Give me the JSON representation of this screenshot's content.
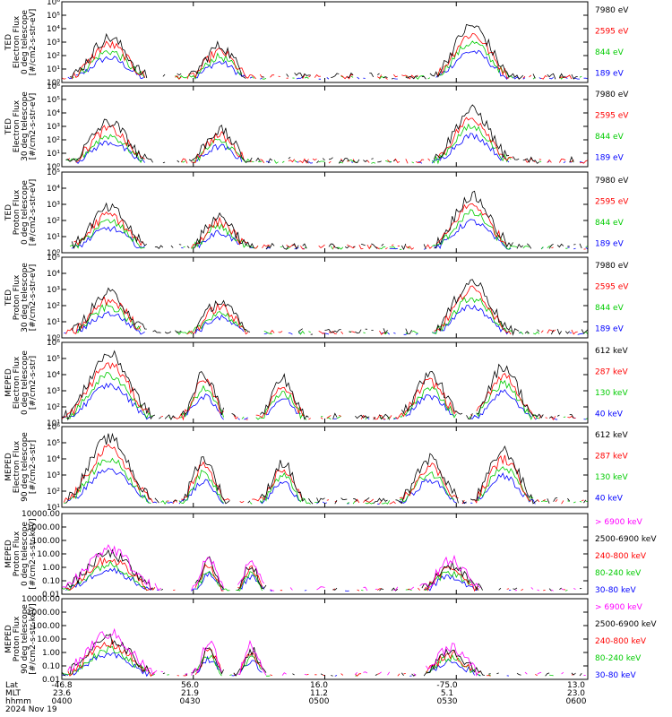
{
  "colors": {
    "blue": "#0000ff",
    "red": "#ff0000",
    "green": "#00cc00",
    "black": "#000000",
    "magenta": "#ff00ff"
  },
  "chart_data": [
    {
      "type": "line",
      "ylabel_lines": [
        "TED",
        "Electron Flux",
        "0 deg telescope",
        "[#/cm2-s-str-eV]"
      ],
      "yscale": "log",
      "ylim": [
        1,
        1000000
      ],
      "yticks": [
        "10⁰",
        "10¹",
        "10²",
        "10³",
        "10⁴",
        "10⁵",
        "10⁶"
      ],
      "series": [
        {
          "name": "7980 eV",
          "color": "#000000"
        },
        {
          "name": "2595 eV",
          "color": "#ff0000"
        },
        {
          "name": "844 eV",
          "color": "#00cc00"
        },
        {
          "name": "189 eV",
          "color": "#0000ff"
        }
      ]
    },
    {
      "type": "line",
      "ylabel_lines": [
        "TED",
        "Electron Flux",
        "30 deg telescope",
        "[#/cm2-s-str-eV]"
      ],
      "yscale": "log",
      "ylim": [
        1,
        1000000
      ],
      "yticks": [
        "10⁰",
        "10¹",
        "10²",
        "10³",
        "10⁴",
        "10⁵",
        "10⁶"
      ],
      "series": [
        {
          "name": "7980 eV",
          "color": "#000000"
        },
        {
          "name": "2595 eV",
          "color": "#ff0000"
        },
        {
          "name": "844 eV",
          "color": "#00cc00"
        },
        {
          "name": "189 eV",
          "color": "#0000ff"
        }
      ]
    },
    {
      "type": "line",
      "ylabel_lines": [
        "TED",
        "Proton Flux",
        "0 deg telescope",
        "[#/cm2-s-str-eV]"
      ],
      "yscale": "log",
      "ylim": [
        1,
        100000
      ],
      "yticks": [
        "10⁰",
        "10¹",
        "10²",
        "10³",
        "10⁴",
        "10⁵"
      ],
      "series": [
        {
          "name": "7980 eV",
          "color": "#000000"
        },
        {
          "name": "2595 eV",
          "color": "#ff0000"
        },
        {
          "name": "844 eV",
          "color": "#00cc00"
        },
        {
          "name": "189 eV",
          "color": "#0000ff"
        }
      ]
    },
    {
      "type": "line",
      "ylabel_lines": [
        "TED",
        "Proton Flux",
        "30 deg telescope",
        "[#/cm2-s-str-eV]"
      ],
      "yscale": "log",
      "ylim": [
        1,
        100000
      ],
      "yticks": [
        "10⁰",
        "10¹",
        "10²",
        "10³",
        "10⁴",
        "10⁵"
      ],
      "series": [
        {
          "name": "7980 eV",
          "color": "#000000"
        },
        {
          "name": "2595 eV",
          "color": "#ff0000"
        },
        {
          "name": "844 eV",
          "color": "#00cc00"
        },
        {
          "name": "189 eV",
          "color": "#0000ff"
        }
      ]
    },
    {
      "type": "line",
      "ylabel_lines": [
        "MEPED",
        "Electron Flux",
        "0 deg telescope",
        "[#/cm2-s-str]"
      ],
      "yscale": "log",
      "ylim": [
        10,
        1000000
      ],
      "yticks": [
        "10¹",
        "10²",
        "10³",
        "10⁴",
        "10⁵",
        "10⁶"
      ],
      "series": [
        {
          "name": "612 keV",
          "color": "#000000"
        },
        {
          "name": "287 keV",
          "color": "#ff0000"
        },
        {
          "name": "130 keV",
          "color": "#00cc00"
        },
        {
          "name": "40 keV",
          "color": "#0000ff"
        }
      ]
    },
    {
      "type": "line",
      "ylabel_lines": [
        "MEPED",
        "Electron Flux",
        "90 deg telescope",
        "[#/cm2-s-str]"
      ],
      "yscale": "log",
      "ylim": [
        10,
        1000000
      ],
      "yticks": [
        "10¹",
        "10²",
        "10³",
        "10⁴",
        "10⁵",
        "10⁶"
      ],
      "series": [
        {
          "name": "612 keV",
          "color": "#000000"
        },
        {
          "name": "287 keV",
          "color": "#ff0000"
        },
        {
          "name": "130 keV",
          "color": "#00cc00"
        },
        {
          "name": "40 keV",
          "color": "#0000ff"
        }
      ]
    },
    {
      "type": "line",
      "ylabel_lines": [
        "MEPED",
        "Proton Flux",
        "0 deg telescope",
        "[#/cm2-s-str-keV]"
      ],
      "yscale": "log",
      "ylim": [
        0.01,
        10000
      ],
      "yticks": [
        "0.01",
        "0.10",
        "1.00",
        "10.00",
        "100.00",
        "1000.00",
        "10000.00"
      ],
      "series": [
        {
          "name": "> 6900 keV",
          "color": "#ff00ff"
        },
        {
          "name": "2500-6900 keV",
          "color": "#000000"
        },
        {
          "name": "240-800 keV",
          "color": "#ff0000"
        },
        {
          "name": "80-240 keV",
          "color": "#00cc00"
        },
        {
          "name": "30-80 keV",
          "color": "#0000ff"
        }
      ]
    },
    {
      "type": "line",
      "ylabel_lines": [
        "MEPED",
        "Proton Flux",
        "90 deg telescope",
        "[#/cm2-s-str-keV]"
      ],
      "yscale": "log",
      "ylim": [
        0.01,
        10000
      ],
      "yticks": [
        "0.01",
        "0.10",
        "1.00",
        "10.00",
        "100.00",
        "1000.00",
        "10000.00"
      ],
      "series": [
        {
          "name": "> 6900 keV",
          "color": "#ff00ff"
        },
        {
          "name": "2500-6900 keV",
          "color": "#000000"
        },
        {
          "name": "240-800 keV",
          "color": "#ff0000"
        },
        {
          "name": "80-240 keV",
          "color": "#00cc00"
        },
        {
          "name": "30-80 keV",
          "color": "#0000ff"
        }
      ]
    }
  ],
  "x_axis": {
    "row_labels": [
      "Lat",
      "MLT",
      "hhmm",
      "2024 Nov 19"
    ],
    "ticks": [
      {
        "lat": "-46.8",
        "mlt": "23.6",
        "hhmm": "0400"
      },
      {
        "lat": "56.0",
        "mlt": "21.9",
        "hhmm": "0430"
      },
      {
        "lat": "16.0",
        "mlt": "11.2",
        "hhmm": "0500"
      },
      {
        "lat": "-75.0",
        "mlt": "5.1",
        "hhmm": "0530"
      },
      {
        "lat": "13.0",
        "mlt": "23.0",
        "hhmm": "0600"
      }
    ]
  }
}
